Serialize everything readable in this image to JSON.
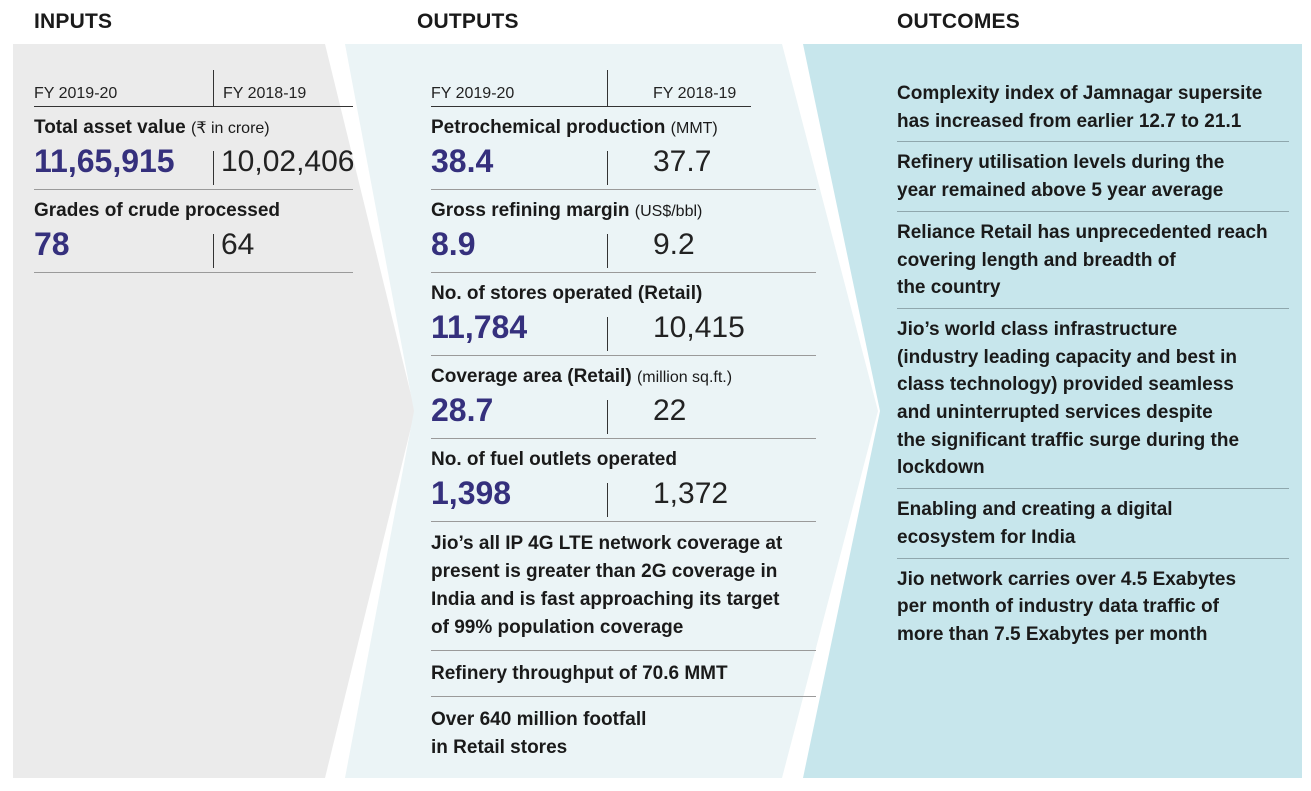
{
  "headings": {
    "inputs": "INPUTS",
    "outputs": "OUTPUTS",
    "outcomes": "OUTCOMES"
  },
  "colors": {
    "inputs_bg": "#ebebeb",
    "outputs_bg": "#ebf4f6",
    "outcomes_bg": "#c7e6ec",
    "value_accent": "#35307d"
  },
  "inputs": {
    "fy_current": "FY 2019-20",
    "fy_previous": "FY 2018-19",
    "metrics": [
      {
        "label": "Total asset value",
        "unit": "(₹ in crore)",
        "current": "11,65,915",
        "previous": "10,02,406"
      },
      {
        "label": "Grades of crude processed",
        "unit": "",
        "current": "78",
        "previous": "64"
      }
    ]
  },
  "outputs": {
    "fy_current": "FY 2019-20",
    "fy_previous": "FY 2018-19",
    "metrics": [
      {
        "label": "Petrochemical production",
        "unit": "(MMT)",
        "current": "38.4",
        "previous": "37.7"
      },
      {
        "label": "Gross refining margin",
        "unit": "(US$/bbl)",
        "current": "8.9",
        "previous": "9.2"
      },
      {
        "label": "No. of stores operated (Retail)",
        "unit": "",
        "current": "11,784",
        "previous": "10,415"
      },
      {
        "label": "Coverage area (Retail)",
        "unit": "(million sq.ft.)",
        "current": "28.7",
        "previous": "22"
      },
      {
        "label": "No. of fuel outlets operated",
        "unit": "",
        "current": "1,398",
        "previous": "1,372"
      }
    ],
    "notes": [
      [
        "Jio’s all IP 4G LTE network coverage at",
        "present is greater than 2G coverage in",
        "India and is fast approaching its target",
        "of 99% population coverage"
      ],
      [
        "Refinery throughput of 70.6 MMT"
      ],
      [
        "Over 640 million footfall",
        "in Retail stores"
      ]
    ]
  },
  "outcomes": [
    [
      "Complexity index of Jamnagar supersite",
      "has increased from earlier 12.7 to 21.1"
    ],
    [
      "Refinery utilisation levels during the",
      "year remained above 5 year average"
    ],
    [
      "Reliance Retail has unprecedented reach",
      "covering length and breadth of",
      "the country"
    ],
    [
      "Jio’s world class infrastructure",
      "(industry leading capacity and best in",
      "class technology) provided seamless",
      "and uninterrupted services despite",
      "the significant traffic surge during the",
      "lockdown"
    ],
    [
      "Enabling and creating a digital",
      "ecosystem for India"
    ],
    [
      "Jio network carries over 4.5 Exabytes",
      "per month of industry data traffic of",
      "more than 7.5 Exabytes per month"
    ]
  ]
}
